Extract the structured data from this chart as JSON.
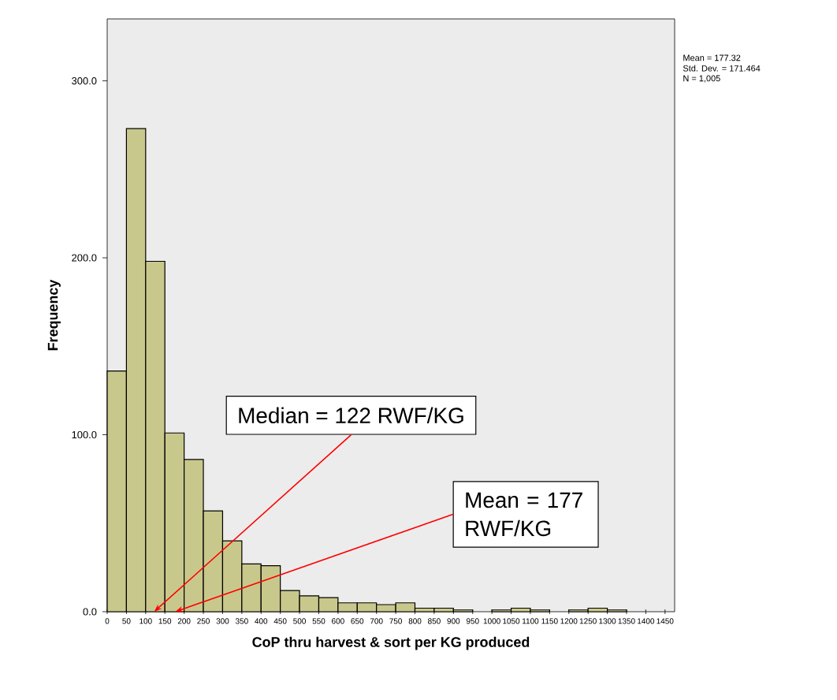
{
  "chart_data": {
    "type": "histogram",
    "xlabel": "CoP thru harvest & sort per KG produced",
    "ylabel": "Frequency",
    "bins": [
      0,
      50,
      100,
      150,
      200,
      250,
      300,
      350,
      400,
      450,
      500,
      550,
      600,
      650,
      700,
      750,
      800,
      850,
      900,
      950,
      1000,
      1050,
      1100,
      1150,
      1200,
      1250,
      1300,
      1350,
      1400,
      1450
    ],
    "values": [
      136,
      273,
      198,
      101,
      86,
      57,
      40,
      27,
      26,
      12,
      9,
      8,
      5,
      5,
      4,
      5,
      2,
      2,
      1,
      0,
      1,
      2,
      1,
      0,
      1,
      2,
      1,
      0,
      0
    ],
    "color": "#c8c88c",
    "xlim": [
      0,
      1475
    ],
    "xticks": [
      0,
      50,
      100,
      150,
      200,
      250,
      300,
      350,
      400,
      450,
      500,
      550,
      600,
      650,
      700,
      750,
      800,
      850,
      900,
      950,
      1000,
      1050,
      1100,
      1150,
      1200,
      1250,
      1300,
      1350,
      1400,
      1450
    ],
    "ylim": [
      0,
      335
    ],
    "yticks": [
      {
        "value": 0,
        "label": "0.0"
      },
      {
        "value": 100,
        "label": "100.0"
      },
      {
        "value": 200,
        "label": "200.0"
      },
      {
        "value": 300,
        "label": "300.0"
      }
    ],
    "grid": false,
    "annotations": [
      {
        "text": "Median = 122 RWF/KG",
        "x": 122,
        "y": 0
      },
      {
        "text": "Mean = 177 RWF/KG",
        "x": 177,
        "y": 0
      },
      "Mean = 177.32",
      "Std. Dev. = 171.464",
      "N = 1,005"
    ]
  }
}
